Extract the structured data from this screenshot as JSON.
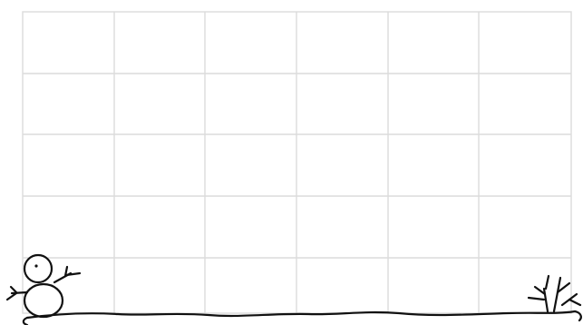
{
  "game_board": {
    "columns": 6,
    "rows": 5,
    "grid_color": "#dcdcdc",
    "ink_color": "#111111",
    "background_color": "#ffffff"
  },
  "decorations": {
    "left_figure": "snowman-icon",
    "right_figure": "bare-shrub-icon",
    "ground": "snow-ground"
  }
}
